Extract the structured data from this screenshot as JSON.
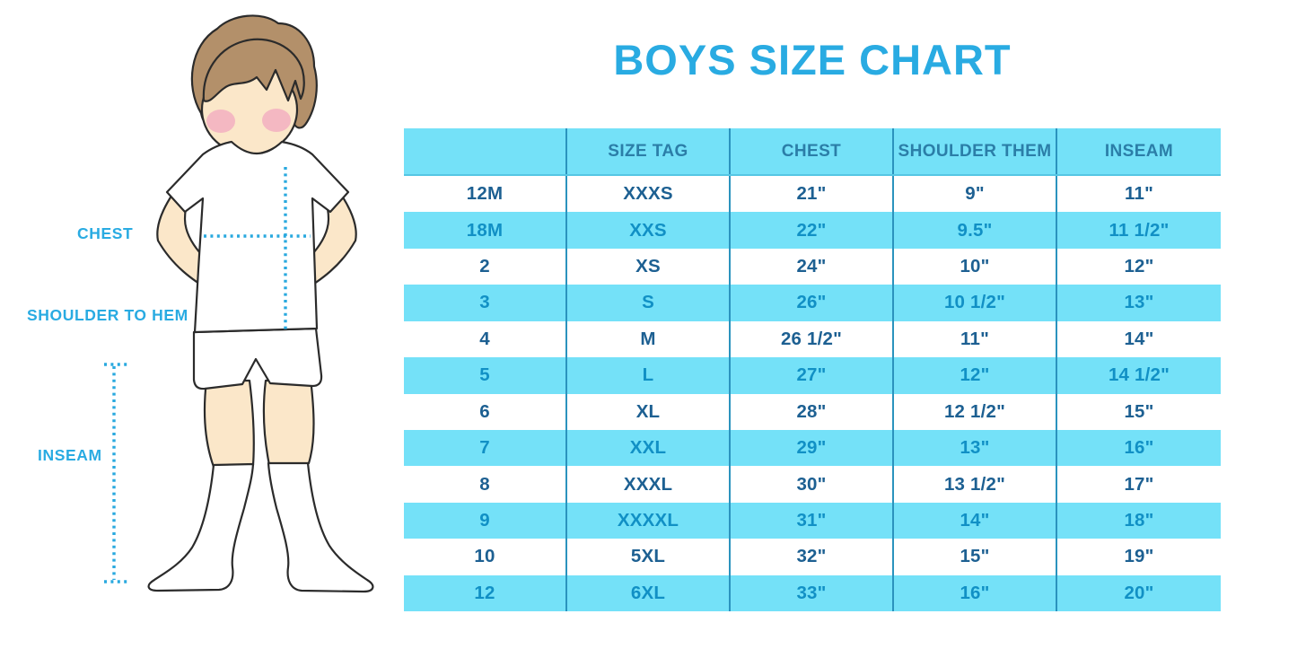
{
  "title": "BOYS SIZE CHART",
  "figure_labels": {
    "chest": "CHEST",
    "shoulder_to_hem": "SHOULDER TO HEM",
    "inseam": "INSEAM"
  },
  "chart_data": {
    "type": "table",
    "title": "BOYS SIZE CHART",
    "columns": [
      "",
      "SIZE TAG",
      "CHEST",
      "SHOULDER THEM",
      "INSEAM"
    ],
    "rows": [
      [
        "12M",
        "XXXS",
        "21\"",
        "9\"",
        "11\""
      ],
      [
        "18M",
        "XXS",
        "22\"",
        "9.5\"",
        "11 1/2\""
      ],
      [
        "2",
        "XS",
        "24\"",
        "10\"",
        "12\""
      ],
      [
        "3",
        "S",
        "26\"",
        "10 1/2\"",
        "13\""
      ],
      [
        "4",
        "M",
        "26 1/2\"",
        "11\"",
        "14\""
      ],
      [
        "5",
        "L",
        "27\"",
        "12\"",
        "14 1/2\""
      ],
      [
        "6",
        "XL",
        "28\"",
        "12 1/2\"",
        "15\""
      ],
      [
        "7",
        "XXL",
        "29\"",
        "13\"",
        "16\""
      ],
      [
        "8",
        "XXXL",
        "30\"",
        "13 1/2\"",
        "17\""
      ],
      [
        "9",
        "XXXXL",
        "31\"",
        "14\"",
        "18\""
      ],
      [
        "10",
        "5XL",
        "32\"",
        "15\"",
        "19\""
      ],
      [
        "12",
        "6XL",
        "33\"",
        "16\"",
        "20\""
      ]
    ],
    "layout": {
      "header_background": "#74E1F8",
      "alternating_row_background": [
        "#FFFFFF",
        "#74E1F8"
      ],
      "column_divider_color": "#2B93BE",
      "legend_position": "none",
      "grid": "vertical-dividers-only"
    }
  },
  "colors": {
    "title_cyan": "#29ABE2",
    "band_cyan": "#74E1F8",
    "header_text": "#2B7EA8",
    "white_row_text": "#1D6092",
    "cyan_row_text": "#1190C5",
    "divider": "#2B93BE",
    "dotted_line": "#29A9DF",
    "skin": "#FBE7C9",
    "hair": "#B3906A",
    "blush": "#F2ADC0"
  }
}
